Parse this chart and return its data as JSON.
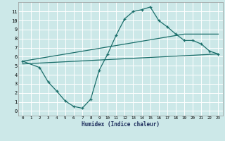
{
  "xlabel": "Humidex (Indice chaleur)",
  "bg_color": "#cce8e8",
  "grid_color": "#ffffff",
  "line_color": "#1a6e6a",
  "xlim": [
    -0.5,
    23.5
  ],
  "ylim": [
    -0.5,
    12
  ],
  "xticks": [
    0,
    1,
    2,
    3,
    4,
    5,
    6,
    7,
    8,
    9,
    10,
    11,
    12,
    13,
    14,
    15,
    16,
    17,
    18,
    19,
    20,
    21,
    22,
    23
  ],
  "yticks": [
    0,
    1,
    2,
    3,
    4,
    5,
    6,
    7,
    8,
    9,
    10,
    11
  ],
  "line1_x": [
    0,
    2,
    3,
    4,
    5,
    6,
    7,
    8,
    9,
    10,
    11,
    12,
    13,
    14,
    15,
    16,
    17,
    18,
    19,
    20,
    21,
    22,
    23
  ],
  "line1_y": [
    5.5,
    4.8,
    3.2,
    2.2,
    1.1,
    0.5,
    0.3,
    1.3,
    4.5,
    6.3,
    8.4,
    10.2,
    11.0,
    11.2,
    11.5,
    10.0,
    9.3,
    8.5,
    7.8,
    7.8,
    7.4,
    6.6,
    6.3
  ],
  "line2_x": [
    0,
    19,
    23
  ],
  "line2_y": [
    5.5,
    8.5,
    8.5
  ],
  "line3_x": [
    0,
    23
  ],
  "line3_y": [
    5.2,
    6.3
  ],
  "marker": "+"
}
